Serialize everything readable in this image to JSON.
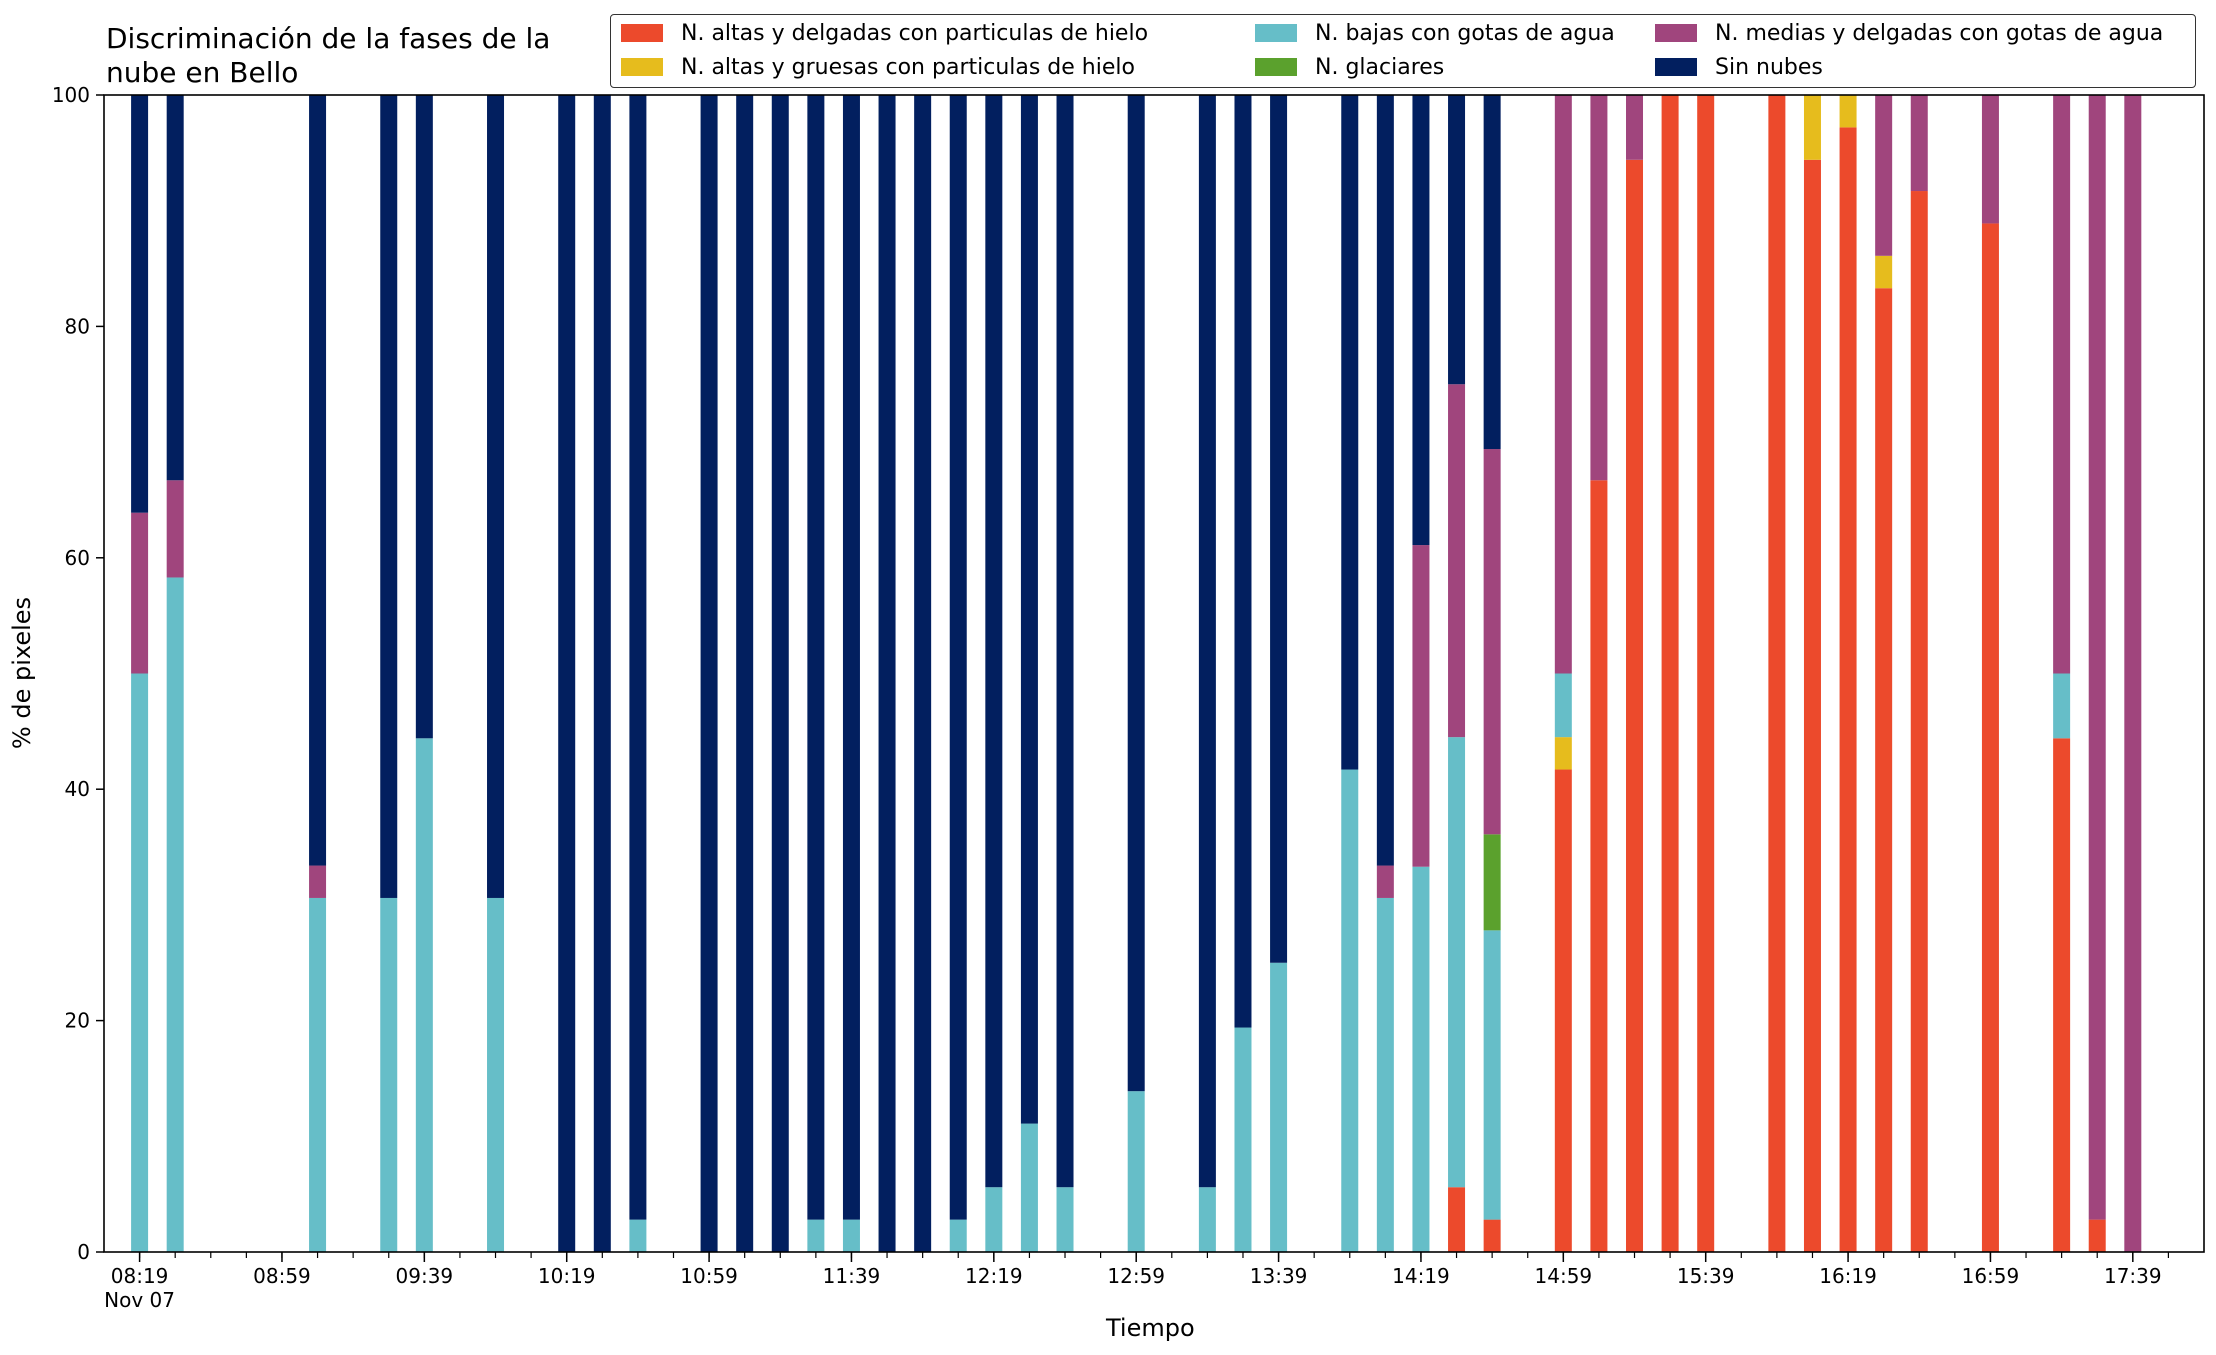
{
  "chart_data": {
    "type": "bar",
    "stacked": true,
    "title_lines": [
      "Discriminación de la fases de la",
      "nube en Bello"
    ],
    "xlabel": "Tiempo",
    "ylabel": "% de pixeles",
    "ylim": [
      0,
      100
    ],
    "yticks": [
      "0",
      "20",
      "40",
      "60",
      "80",
      "100"
    ],
    "x_date_label": "Nov 07",
    "x_tick_labels": [
      "08:19",
      "08:59",
      "09:39",
      "10:19",
      "10:59",
      "11:39",
      "12:19",
      "12:59",
      "13:39",
      "14:19",
      "14:59",
      "15:39",
      "16:19",
      "16:59",
      "17:39"
    ],
    "legend_position": "top-right",
    "series": [
      {
        "key": "bajas",
        "name": "N. bajas con gotas de agua",
        "color": "#66bec8"
      },
      {
        "key": "alto_hielo",
        "name": "N. altas y delgadas con particulas de hielo",
        "color": "#ec4a2c"
      },
      {
        "key": "gruesas",
        "name": "N. altas y gruesas con particulas de hielo",
        "color": "#e6bc1d"
      },
      {
        "key": "glaciares",
        "name": "N. glaciares",
        "color": "#5ba12d"
      },
      {
        "key": "medias",
        "name": "N. medias y delgadas con gotas de agua",
        "color": "#a0457d"
      },
      {
        "key": "sin",
        "name": "Sin nubes",
        "color": "#021f5f"
      }
    ],
    "legend_order": [
      "alto_hielo",
      "gruesas",
      "bajas",
      "glaciares",
      "medias",
      "sin"
    ],
    "bars": [
      {
        "time": "08:19",
        "bajas": 50.0,
        "medias": 13.9,
        "sin": 36.1
      },
      {
        "time": "08:29",
        "bajas": 58.3,
        "medias": 8.4,
        "sin": 33.3
      },
      {
        "time": "09:09",
        "bajas": 30.6,
        "medias": 2.8,
        "sin": 66.6
      },
      {
        "time": "09:29",
        "bajas": 30.6,
        "sin": 69.4
      },
      {
        "time": "09:39",
        "bajas": 44.4,
        "sin": 55.6
      },
      {
        "time": "09:59",
        "bajas": 30.6,
        "sin": 69.4
      },
      {
        "time": "10:19",
        "sin": 100
      },
      {
        "time": "10:29",
        "sin": 100
      },
      {
        "time": "10:39",
        "bajas": 2.8,
        "sin": 97.2
      },
      {
        "time": "10:59",
        "sin": 100
      },
      {
        "time": "11:09",
        "sin": 100
      },
      {
        "time": "11:19",
        "sin": 100
      },
      {
        "time": "11:29",
        "bajas": 2.8,
        "sin": 97.2
      },
      {
        "time": "11:39",
        "bajas": 2.8,
        "sin": 97.2
      },
      {
        "time": "11:49",
        "sin": 100
      },
      {
        "time": "11:59",
        "sin": 100
      },
      {
        "time": "12:09",
        "bajas": 2.8,
        "sin": 97.2
      },
      {
        "time": "12:19",
        "bajas": 5.6,
        "sin": 94.4
      },
      {
        "time": "12:29",
        "bajas": 11.1,
        "sin": 88.9
      },
      {
        "time": "12:39",
        "bajas": 5.6,
        "sin": 94.4
      },
      {
        "time": "12:59",
        "bajas": 13.9,
        "sin": 86.1
      },
      {
        "time": "13:19",
        "bajas": 5.6,
        "sin": 94.4
      },
      {
        "time": "13:29",
        "bajas": 19.4,
        "sin": 80.6
      },
      {
        "time": "13:39",
        "bajas": 25.0,
        "sin": 75.0
      },
      {
        "time": "13:59",
        "bajas": 41.7,
        "sin": 58.3
      },
      {
        "time": "14:09",
        "bajas": 30.6,
        "medias": 2.8,
        "sin": 66.6
      },
      {
        "time": "14:19",
        "bajas": 33.3,
        "medias": 27.8,
        "sin": 38.9
      },
      {
        "time": "14:29",
        "alto_hielo": 5.6,
        "bajas": 38.9,
        "medias": 30.5,
        "sin": 25.0
      },
      {
        "time": "14:39",
        "alto_hielo": 2.8,
        "bajas": 25.0,
        "glaciares": 8.3,
        "medias": 33.3,
        "sin": 30.6
      },
      {
        "time": "14:59",
        "alto_hielo": 41.7,
        "gruesas": 2.8,
        "bajas": 5.5,
        "medias": 50.0
      },
      {
        "time": "15:09",
        "alto_hielo": 66.7,
        "medias": 33.3
      },
      {
        "time": "15:19",
        "alto_hielo": 94.4,
        "medias": 5.6
      },
      {
        "time": "15:29",
        "alto_hielo": 100
      },
      {
        "time": "15:39",
        "alto_hielo": 100
      },
      {
        "time": "15:59",
        "alto_hielo": 100
      },
      {
        "time": "16:09",
        "alto_hielo": 94.4,
        "gruesas": 5.6
      },
      {
        "time": "16:19",
        "alto_hielo": 97.2,
        "gruesas": 2.8
      },
      {
        "time": "16:29",
        "alto_hielo": 83.3,
        "gruesas": 2.8,
        "medias": 13.9
      },
      {
        "time": "16:39",
        "alto_hielo": 91.7,
        "medias": 8.3
      },
      {
        "time": "16:59",
        "alto_hielo": 88.9,
        "medias": 11.1
      },
      {
        "time": "17:19",
        "alto_hielo": 44.4,
        "bajas": 5.6,
        "medias": 50.0
      },
      {
        "time": "17:29",
        "alto_hielo": 2.8,
        "medias": 97.2
      },
      {
        "time": "17:39",
        "medias": 100
      }
    ]
  }
}
